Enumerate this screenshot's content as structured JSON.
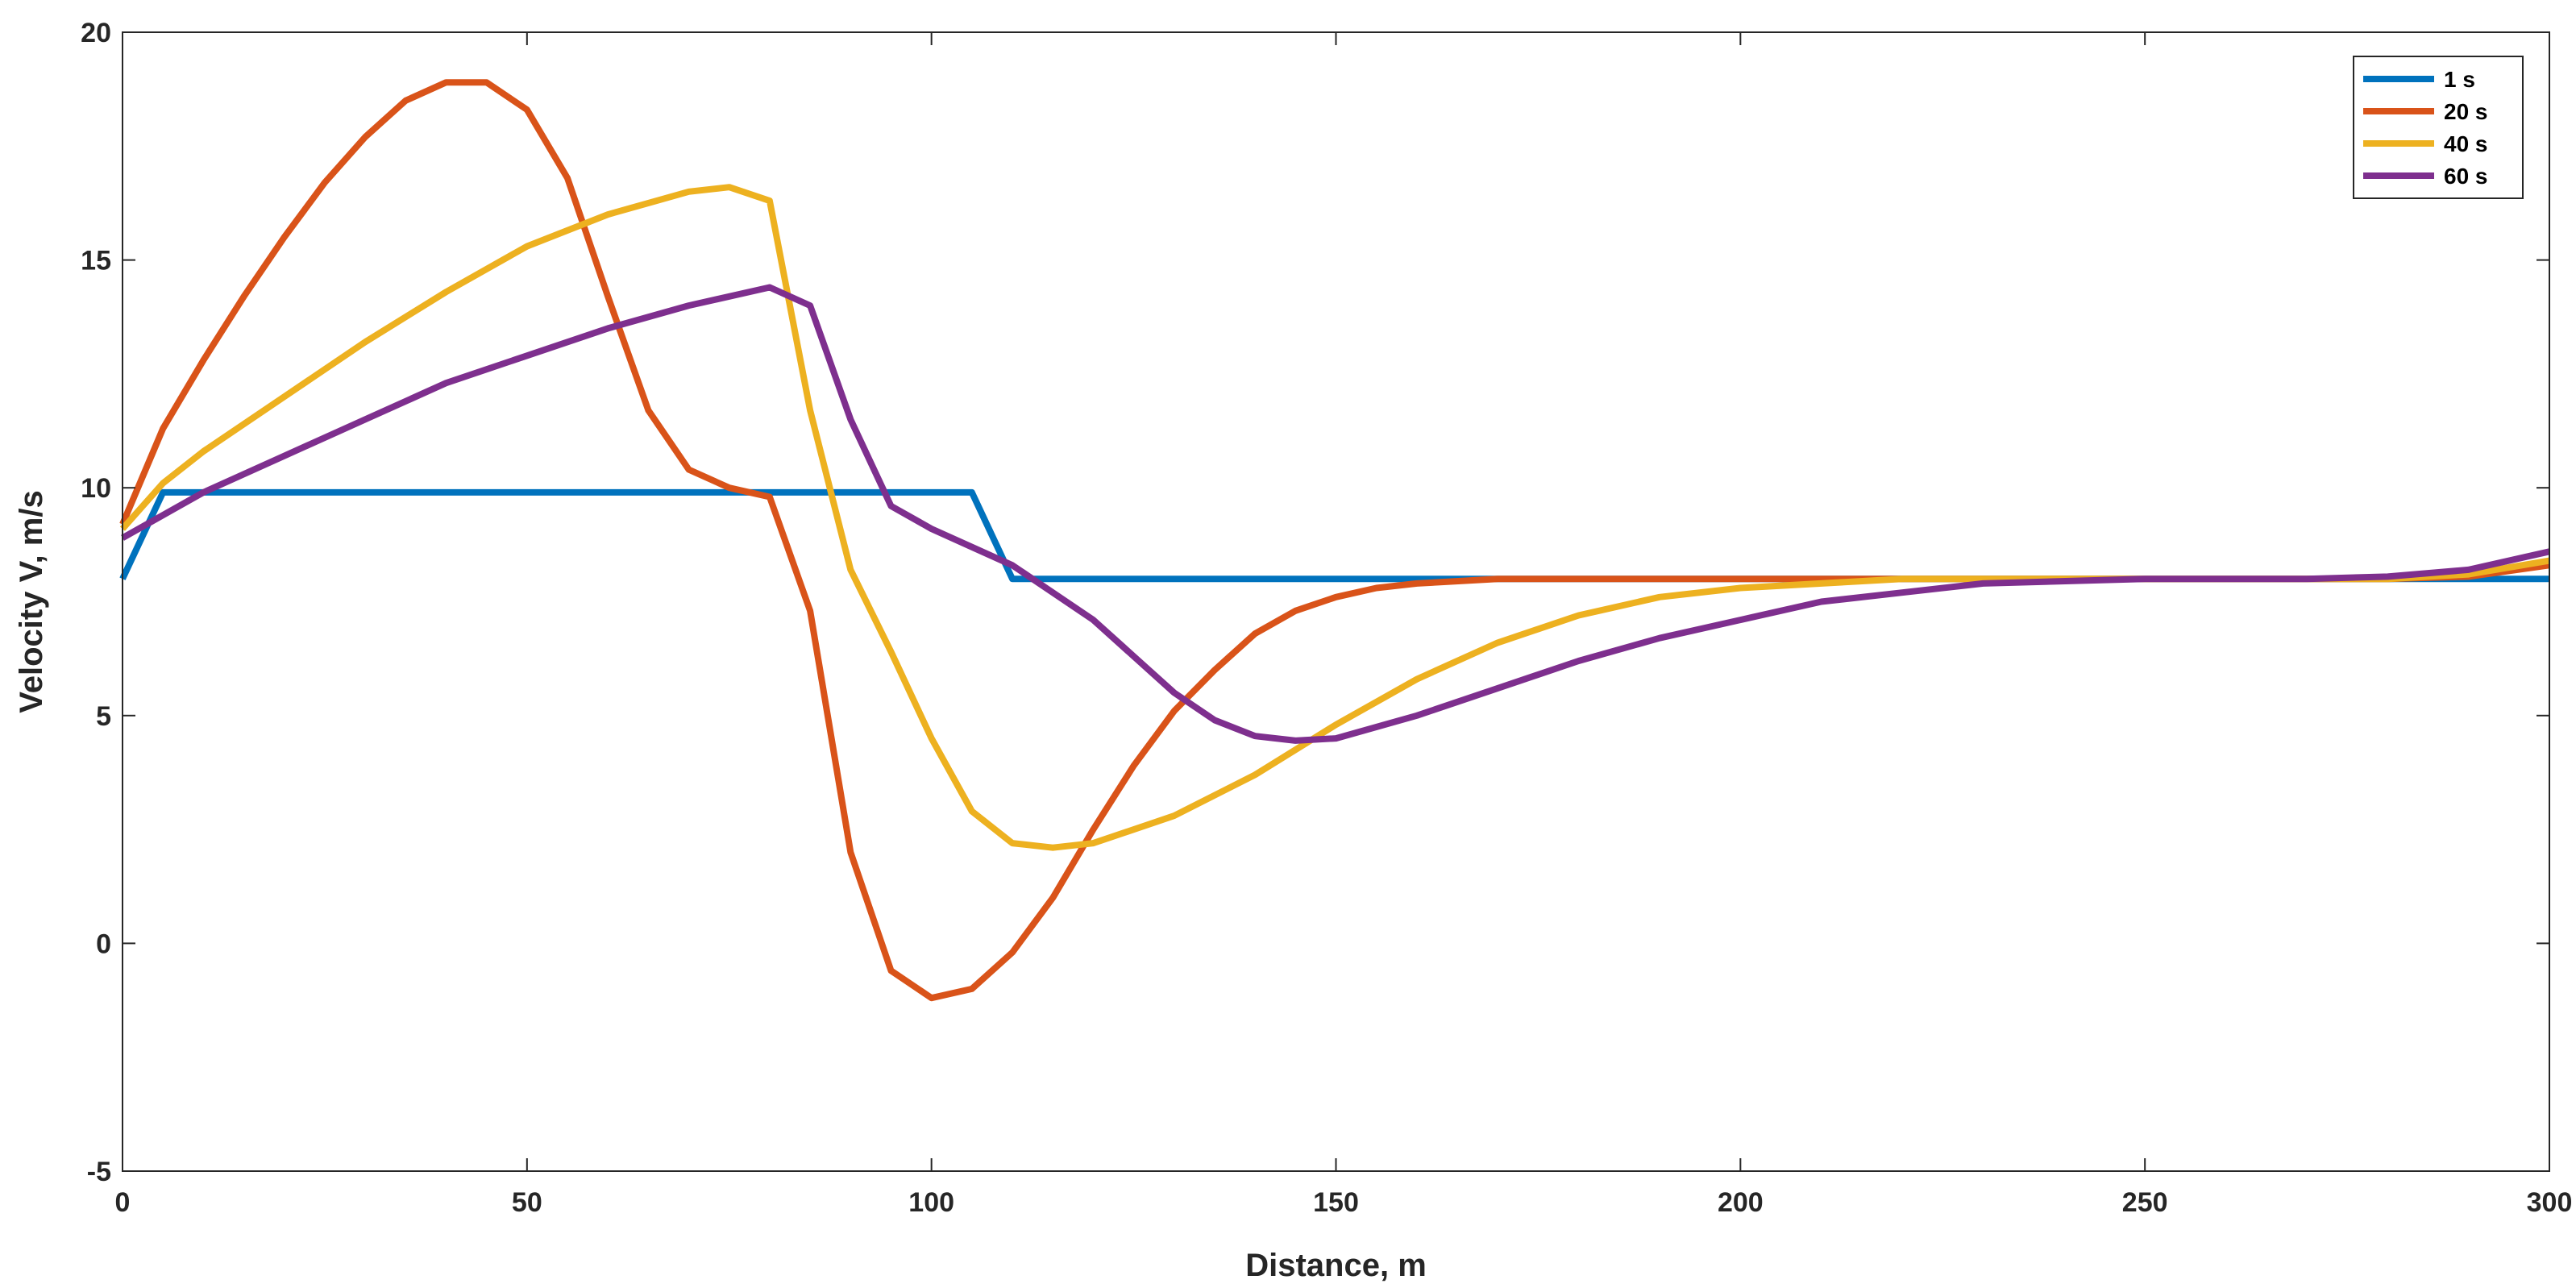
{
  "chart_data": {
    "type": "line",
    "title": "",
    "xlabel": "Distance, m",
    "ylabel": "Velocity V, m/s",
    "xlim": [
      0,
      300
    ],
    "ylim": [
      -5,
      20
    ],
    "xticks": [
      0,
      50,
      100,
      150,
      200,
      250,
      300
    ],
    "yticks": [
      -5,
      0,
      5,
      10,
      15,
      20
    ],
    "xtick_labels": [
      "0",
      "50",
      "100",
      "150",
      "200",
      "250",
      "300"
    ],
    "ytick_labels": [
      "-5",
      "0",
      "5",
      "10",
      "15",
      "20"
    ],
    "grid": false,
    "legend_position": "top-right",
    "series": [
      {
        "name": "1 s",
        "color": "#0072BD",
        "x": [
          0,
          5,
          10,
          100,
          105,
          110,
          300
        ],
        "y": [
          8.0,
          9.9,
          9.9,
          9.9,
          9.9,
          8.0,
          8.0
        ]
      },
      {
        "name": "20 s",
        "color": "#D95319",
        "x": [
          0,
          5,
          10,
          15,
          20,
          25,
          30,
          35,
          40,
          45,
          50,
          55,
          60,
          65,
          70,
          75,
          80,
          85,
          90,
          95,
          100,
          105,
          110,
          115,
          120,
          125,
          130,
          135,
          140,
          145,
          150,
          155,
          160,
          170,
          180,
          200,
          250,
          280,
          290,
          300
        ],
        "y": [
          9.2,
          11.3,
          12.8,
          14.2,
          15.5,
          16.7,
          17.7,
          18.5,
          18.9,
          18.9,
          18.3,
          16.8,
          14.2,
          11.7,
          10.4,
          10.0,
          9.8,
          7.3,
          2.0,
          -0.6,
          -1.2,
          -1.0,
          -0.2,
          1.0,
          2.5,
          3.9,
          5.1,
          6.0,
          6.8,
          7.3,
          7.6,
          7.8,
          7.9,
          8.0,
          8.0,
          8.0,
          8.0,
          8.0,
          8.05,
          8.3
        ]
      },
      {
        "name": "40 s",
        "color": "#EDB120",
        "x": [
          0,
          5,
          10,
          20,
          30,
          40,
          50,
          60,
          70,
          75,
          80,
          85,
          90,
          95,
          100,
          105,
          110,
          115,
          120,
          130,
          140,
          150,
          160,
          170,
          180,
          190,
          200,
          220,
          250,
          280,
          290,
          300
        ],
        "y": [
          9.1,
          10.1,
          10.8,
          12.0,
          13.2,
          14.3,
          15.3,
          16.0,
          16.5,
          16.6,
          16.3,
          11.7,
          8.2,
          6.4,
          4.5,
          2.9,
          2.2,
          2.1,
          2.2,
          2.8,
          3.7,
          4.8,
          5.8,
          6.6,
          7.2,
          7.6,
          7.8,
          8.0,
          8.0,
          8.0,
          8.1,
          8.4
        ]
      },
      {
        "name": "60 s",
        "color": "#7E2F8E",
        "x": [
          0,
          5,
          10,
          20,
          30,
          40,
          50,
          60,
          70,
          80,
          85,
          90,
          95,
          100,
          105,
          110,
          115,
          120,
          125,
          130,
          135,
          140,
          145,
          150,
          160,
          170,
          180,
          190,
          200,
          210,
          220,
          230,
          250,
          270,
          280,
          290,
          300
        ],
        "y": [
          8.9,
          9.4,
          9.9,
          10.7,
          11.5,
          12.3,
          12.9,
          13.5,
          14.0,
          14.4,
          14.0,
          11.5,
          9.6,
          9.1,
          8.7,
          8.3,
          7.7,
          7.1,
          6.3,
          5.5,
          4.9,
          4.55,
          4.45,
          4.5,
          5.0,
          5.6,
          6.2,
          6.7,
          7.1,
          7.5,
          7.7,
          7.9,
          8.0,
          8.0,
          8.05,
          8.2,
          8.6
        ]
      }
    ]
  }
}
